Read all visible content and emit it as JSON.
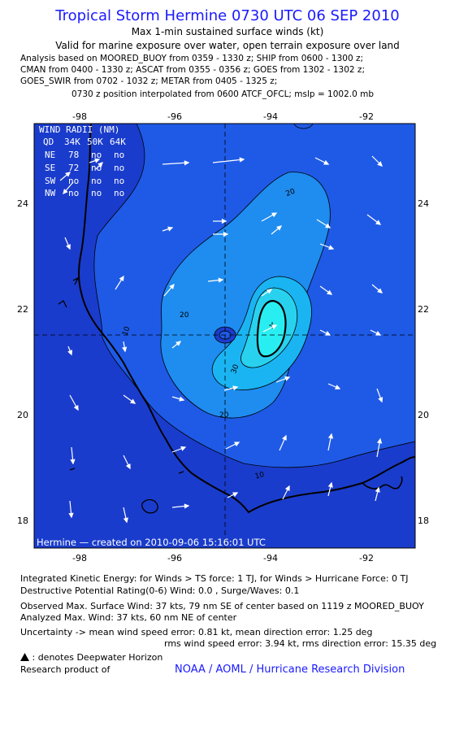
{
  "header": {
    "title": "Tropical Storm Hermine 0730 UTC 06 SEP 2010",
    "subtitle1": "Max 1-min sustained surface winds (kt)",
    "subtitle2": "Valid for marine exposure over water, open terrain exposure over land",
    "sources": [
      "Analysis based on MOORED_BUOY from 0359 - 1330 z; SHIP from 0600 - 1300 z;",
      "CMAN from 0400 - 1330 z; ASCAT from 0355 - 0356 z; GOES from 1302 - 1302 z;",
      "GOES_SWIR from 0702 - 1032 z; METAR from 0405 - 1325 z;"
    ],
    "position_line": "0730 z position interpolated from 0600 ATCF_OFCL; mslp = 1002.0 mb"
  },
  "map": {
    "lon_ticks": [
      "-98",
      "-96",
      "-94",
      "-92"
    ],
    "lat_ticks": [
      "24",
      "22",
      "20",
      "18"
    ],
    "contour_labels": [
      "10",
      "20",
      "20",
      "30",
      "20",
      "10"
    ],
    "footer": "Hermine — created on 2010-09-06 15:16:01 UTC",
    "colors": {
      "level_0": "#1a3ccc",
      "level_10": "#1f5ae6",
      "level_20": "#1f8cf0",
      "level_30": "#1ab4f2",
      "level_35": "#28d2ef",
      "level_37": "#28eef2",
      "border": "#000000",
      "arrows": "#ffffff"
    },
    "wind_radii": {
      "header": [
        "QD",
        "34K",
        "50K",
        "64K"
      ],
      "title": "WIND RADII (NM)",
      "rows": [
        [
          "NE",
          "78",
          "no",
          "no"
        ],
        [
          "SE",
          "72",
          "no",
          "no"
        ],
        [
          "SW",
          "no",
          "no",
          "no"
        ],
        [
          "NW",
          "no",
          "no",
          "no"
        ]
      ]
    },
    "max_wind_marker": "+"
  },
  "info": {
    "ike": "Integrated Kinetic Energy:  for Winds > TS force: 1 TJ,  for Winds > Hurricane Force: 0 TJ",
    "dpr": "Destructive Potential Rating(0-6)   Wind: 0.0 , Surge/Waves: 0.1",
    "obs_max": "Observed Max. Surface Wind: 37 kts, 79 nm SE of center based on 1119 z MOORED_BUOY",
    "analyzed_max": "Analyzed Max. Wind: 37 kts, 60 nm NE of center",
    "uncert1": "Uncertainty -> mean wind speed error: 0.81 kt,   mean direction error: 1.25 deg",
    "uncert2": "rms wind speed error: 3.94 kt,    rms direction error: 15.35 deg",
    "deepwater": ": denotes Deepwater Horizon",
    "research": "Research product of",
    "noaa": "NOAA / AOML / Hurricane Research Division"
  }
}
